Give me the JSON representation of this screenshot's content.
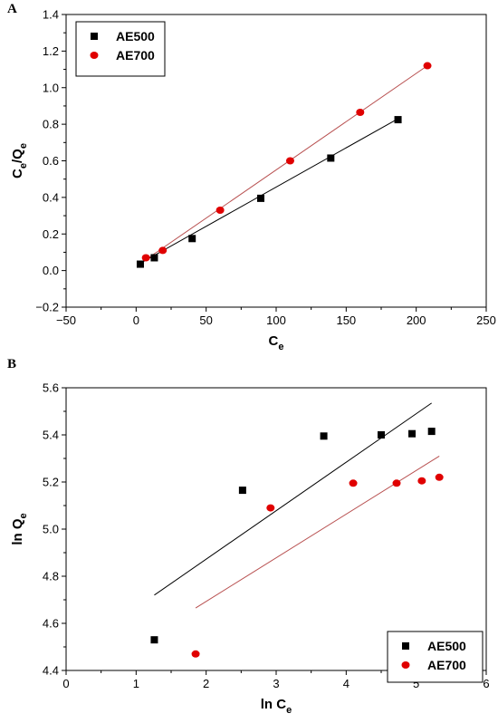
{
  "chart_data": [
    {
      "panel_label": "A",
      "type": "scatter",
      "xlabel": "C",
      "xlabel_sub": "e",
      "ylabel": "C",
      "ylabel_sub": "e",
      "ylabel_mid": "/Q",
      "ylabel_sub2": "e",
      "xlim": [
        -50,
        250
      ],
      "ylim": [
        -0.2,
        1.4
      ],
      "xticks": [
        -50,
        0,
        50,
        100,
        150,
        200,
        250
      ],
      "yticks": [
        -0.2,
        0.0,
        0.2,
        0.4,
        0.6,
        0.8,
        1.0,
        1.2,
        1.4
      ],
      "legend": "top-left",
      "grid": false,
      "series": [
        {
          "name": "AE500",
          "marker": "square",
          "color": "#000000",
          "line_color": "#000000",
          "x": [
            3,
            13,
            40,
            89,
            139,
            187
          ],
          "y": [
            0.035,
            0.07,
            0.175,
            0.395,
            0.615,
            0.825
          ],
          "fit": [
            [
              3,
              0.04
            ],
            [
              187,
              0.83
            ]
          ]
        },
        {
          "name": "AE700",
          "marker": "circle",
          "color": "#e00000",
          "line_color": "#b85050",
          "x": [
            7,
            19,
            60,
            110,
            160,
            208
          ],
          "y": [
            0.07,
            0.11,
            0.33,
            0.6,
            0.865,
            1.12
          ],
          "fit": [
            [
              7,
              0.06
            ],
            [
              208,
              1.12
            ]
          ]
        }
      ]
    },
    {
      "panel_label": "B",
      "type": "scatter",
      "xlabel": "ln C",
      "xlabel_sub": "e",
      "ylabel": "ln Q",
      "ylabel_sub": "e",
      "xlim": [
        0,
        6
      ],
      "ylim": [
        4.4,
        5.6
      ],
      "xticks": [
        0,
        1,
        2,
        3,
        4,
        5,
        6
      ],
      "yticks": [
        4.4,
        4.6,
        4.8,
        5.0,
        5.2,
        5.4,
        5.6
      ],
      "legend": "bottom-right",
      "grid": false,
      "series": [
        {
          "name": "AE500",
          "marker": "square",
          "color": "#000000",
          "line_color": "#000000",
          "x": [
            1.26,
            2.52,
            3.68,
            4.5,
            4.94,
            5.22
          ],
          "y": [
            4.53,
            5.165,
            5.395,
            5.4,
            5.405,
            5.415
          ],
          "fit": [
            [
              1.26,
              4.72
            ],
            [
              5.22,
              5.535
            ]
          ]
        },
        {
          "name": "AE700",
          "marker": "circle",
          "color": "#e00000",
          "line_color": "#b85050",
          "x": [
            1.85,
            2.92,
            4.1,
            4.72,
            5.08,
            5.33
          ],
          "y": [
            4.47,
            5.09,
            5.195,
            5.195,
            5.205,
            5.22
          ],
          "fit": [
            [
              1.85,
              4.665
            ],
            [
              5.33,
              5.31
            ]
          ]
        }
      ]
    }
  ]
}
